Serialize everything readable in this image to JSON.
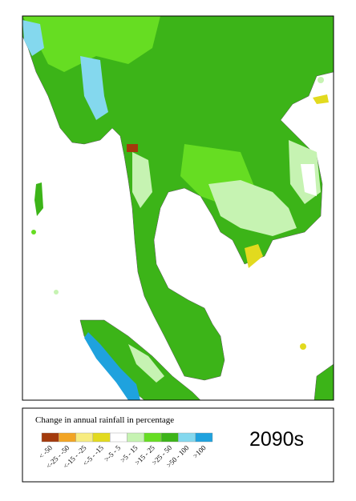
{
  "legend": {
    "title": "Change in annual rainfall in percentage",
    "items": [
      {
        "label": "< -50",
        "color": "#a33a0c"
      },
      {
        "label": "<-25 - -50",
        "color": "#f2a424"
      },
      {
        "label": "<-15 - -25",
        "color": "#f7ec80"
      },
      {
        "label": "<-5 - -15",
        "color": "#e2da1e"
      },
      {
        "label": ">-5 - 5",
        "color": "#ffffff"
      },
      {
        "label": ">5 - 15",
        "color": "#c6f3b2"
      },
      {
        "label": ">15 - 25",
        "color": "#66dd22"
      },
      {
        "label": ">25 - 50",
        "color": "#3cb418"
      },
      {
        "label": ">50 - 100",
        "color": "#84d8ee"
      },
      {
        "label": ">100",
        "color": "#1fa2de"
      }
    ]
  },
  "period": "2090s"
}
